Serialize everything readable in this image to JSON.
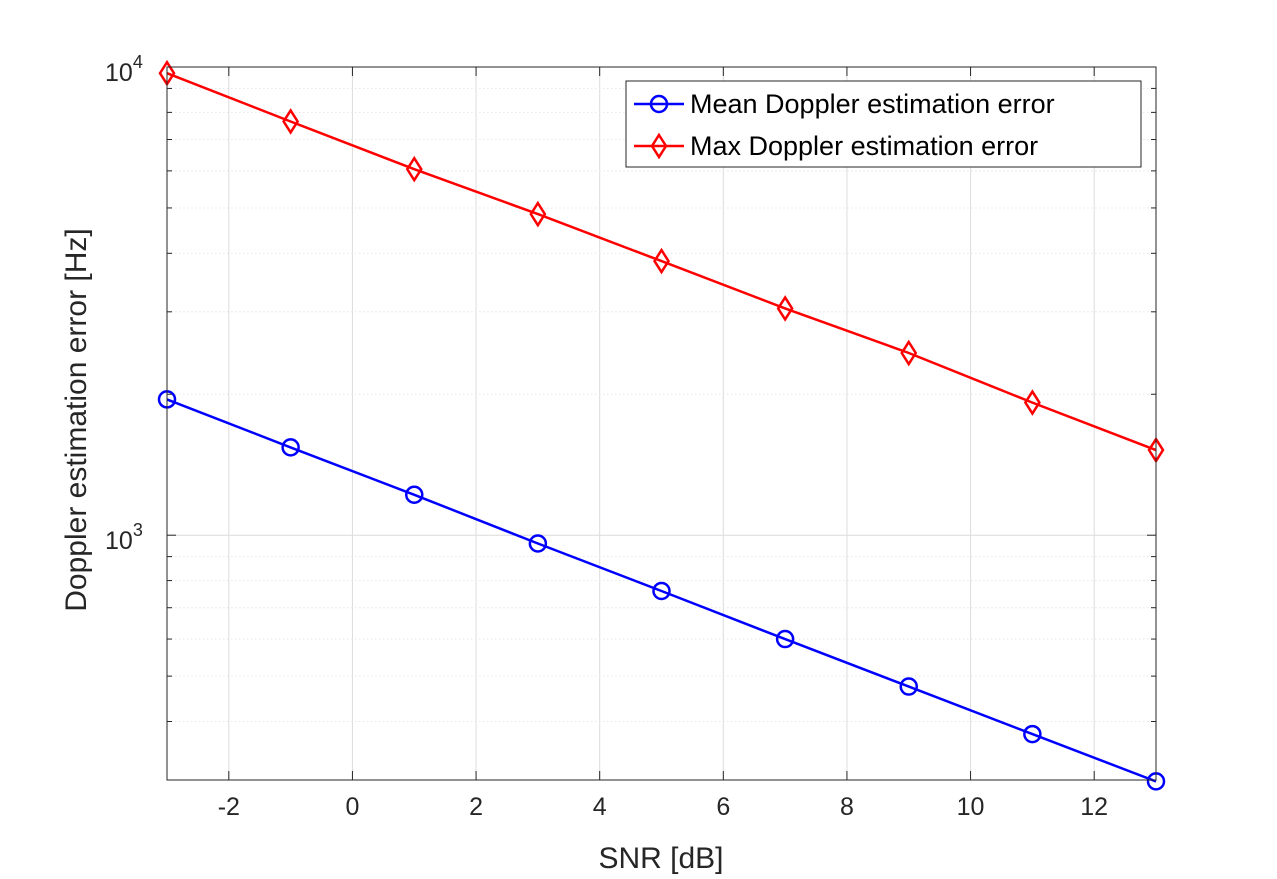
{
  "chart_data": {
    "type": "line",
    "yscale": "log",
    "xlabel": "SNR [dB]",
    "ylabel": "Doppler estimation error [Hz]",
    "xlim": [
      -3,
      13
    ],
    "ylim": [
      300,
      10000
    ],
    "xticks": [
      -2,
      0,
      2,
      4,
      6,
      8,
      10,
      12
    ],
    "yticks": [
      {
        "value": 1000,
        "base": "10",
        "exp": "3"
      },
      {
        "value": 10000,
        "base": "10",
        "exp": "4"
      }
    ],
    "grid": true,
    "legend_position": "top-right",
    "x": [
      -3,
      -1,
      1,
      3,
      5,
      7,
      9,
      11,
      13
    ],
    "series": [
      {
        "name": "Mean Doppler estimation error",
        "color": "#0000ff",
        "marker": "circle",
        "values": [
          1950,
          1540,
          1220,
          960,
          760,
          600,
          475,
          376,
          298
        ]
      },
      {
        "name": "Max Doppler estimation error",
        "color": "#ff0000",
        "marker": "diamond",
        "values": [
          9700,
          7650,
          6050,
          4850,
          3850,
          3050,
          2450,
          1920,
          1520
        ]
      }
    ]
  }
}
